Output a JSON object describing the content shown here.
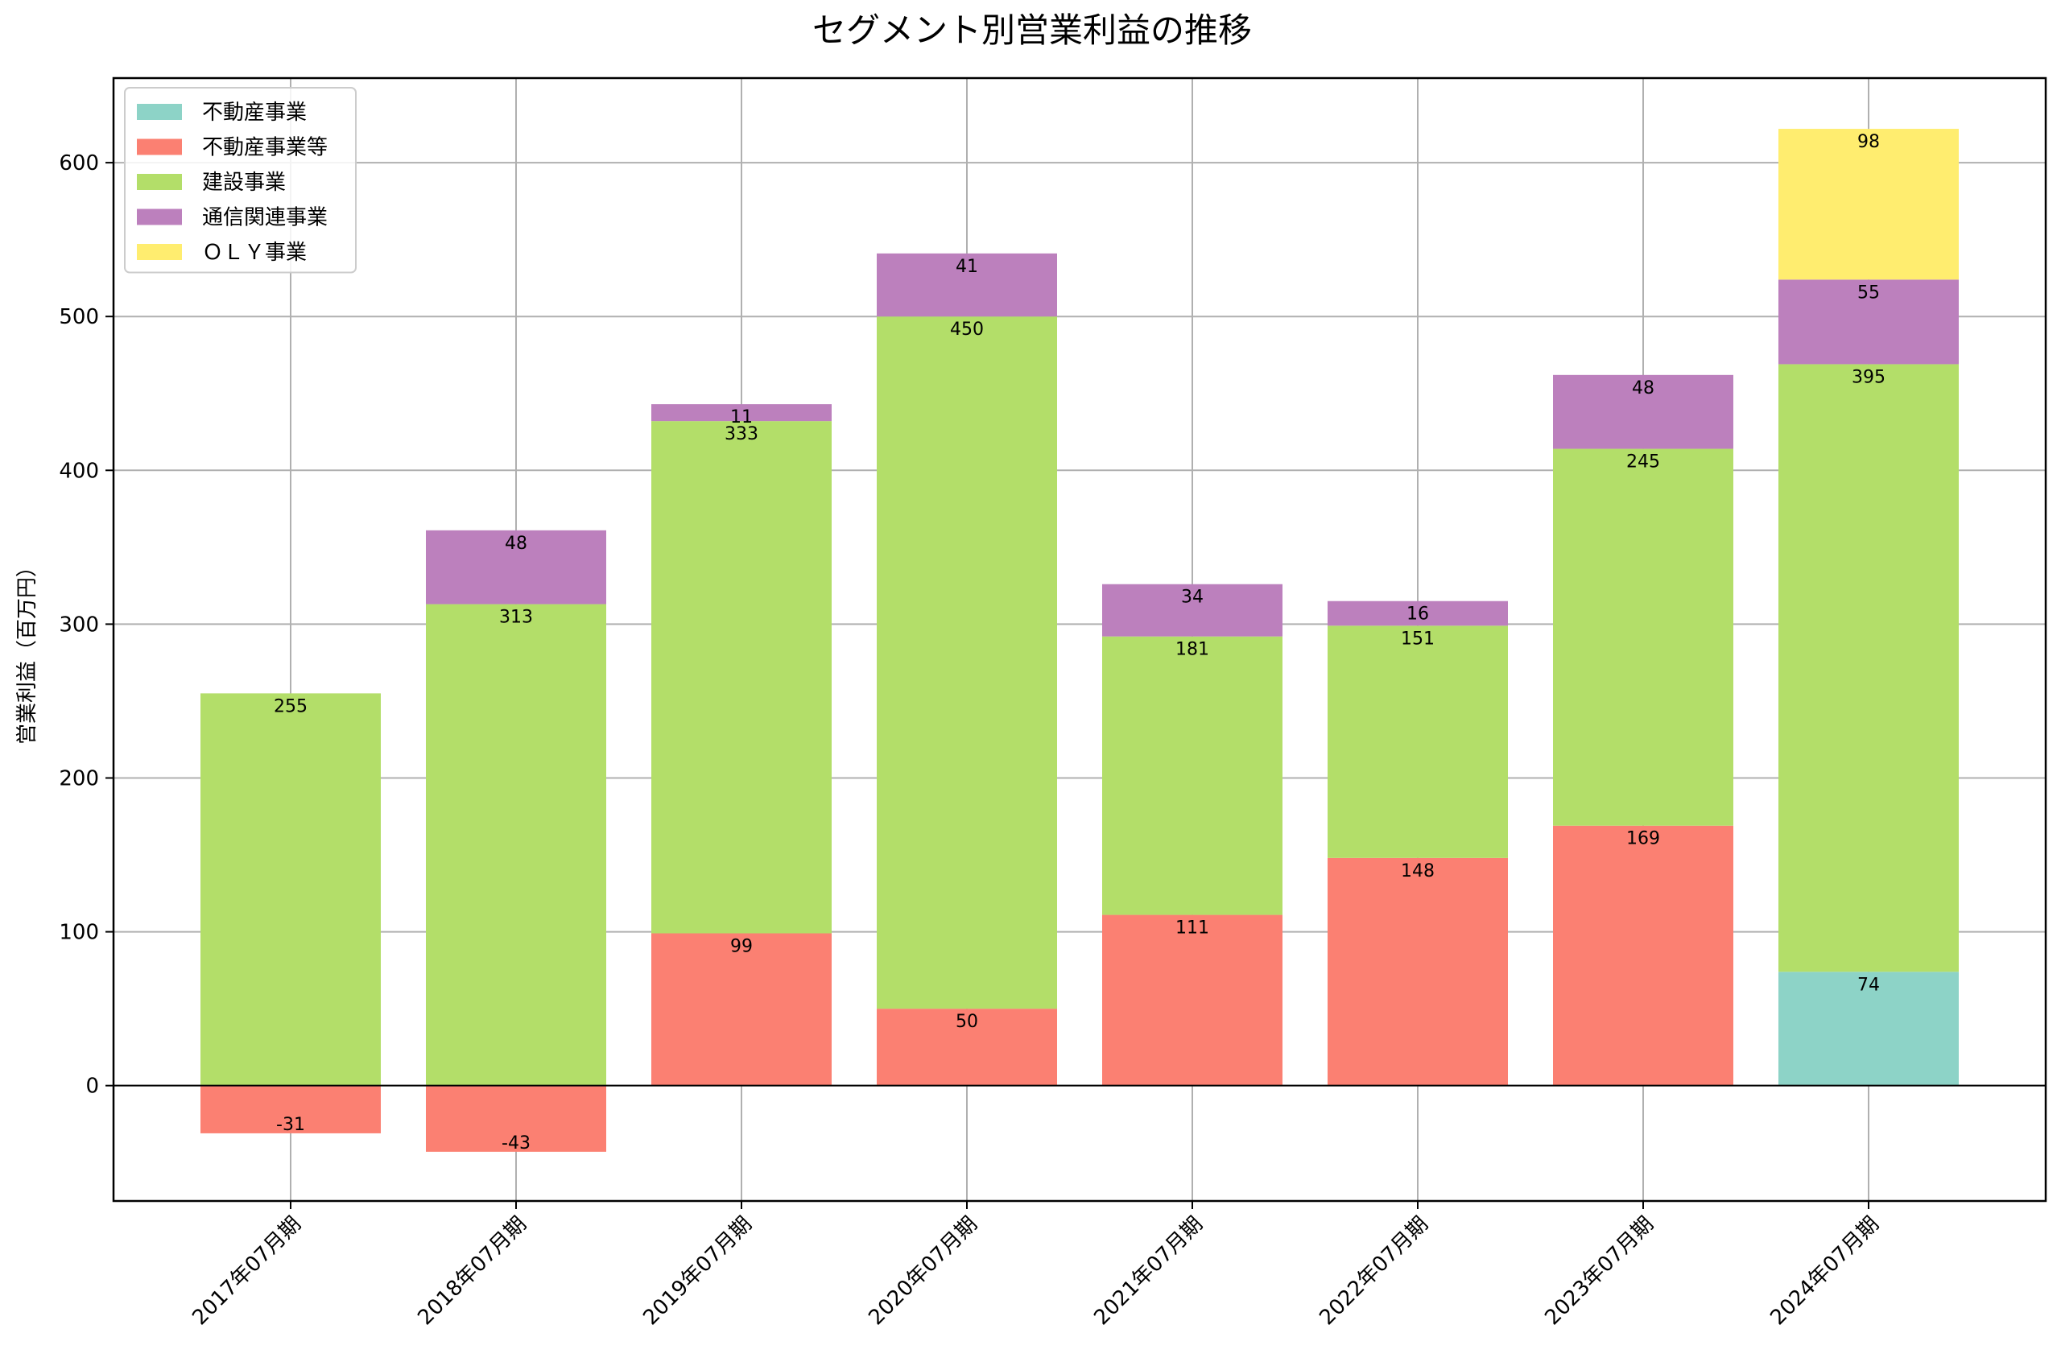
{
  "chart_data": {
    "type": "bar",
    "stacked": true,
    "title": "セグメント別営業利益の推移",
    "ylabel": "営業利益（百万円）",
    "xlabel": "",
    "categories": [
      "2017年07月期",
      "2018年07月期",
      "2019年07月期",
      "2020年07月期",
      "2021年07月期",
      "2022年07月期",
      "2023年07月期",
      "2024年07月期"
    ],
    "ylim": [
      -75,
      655
    ],
    "yticks": [
      0,
      100,
      200,
      300,
      400,
      500,
      600
    ],
    "grid": true,
    "legend_position": "top-left",
    "series": [
      {
        "name": "不動産事業",
        "color": "#8dd3c7",
        "values": [
          null,
          null,
          null,
          null,
          null,
          null,
          null,
          74
        ]
      },
      {
        "name": "不動産事業等",
        "color": "#fb8072",
        "values": [
          -31,
          -43,
          99,
          50,
          111,
          148,
          169,
          null
        ]
      },
      {
        "name": "建設事業",
        "color": "#b3de69",
        "values": [
          255,
          313,
          333,
          450,
          181,
          151,
          245,
          395
        ]
      },
      {
        "name": "通信関連事業",
        "color": "#bc80bd",
        "values": [
          null,
          48,
          11,
          41,
          34,
          16,
          48,
          55
        ]
      },
      {
        "name": "ＯＬＹ事業",
        "color": "#ffed6f",
        "values": [
          null,
          null,
          null,
          null,
          null,
          null,
          null,
          98
        ]
      }
    ]
  }
}
